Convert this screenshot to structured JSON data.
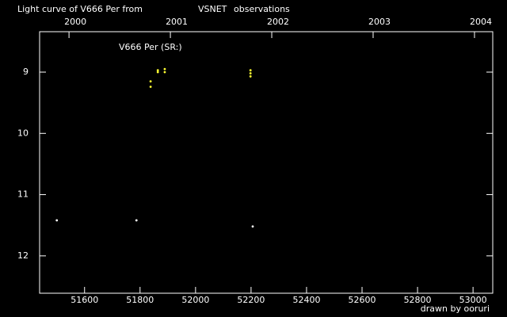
{
  "chart_data": {
    "type": "scatter",
    "title_parts": [
      "Light curve of V666 Per from",
      "VSNET",
      "observations"
    ],
    "title_colors": [
      "#ffffff",
      "#ffff66",
      "#ffffff"
    ],
    "label": "V666 Per (SR:)",
    "footer": "drawn by ooruri",
    "footer_color": "#33cccc",
    "xlim": [
      51438,
      53071
    ],
    "xticks": [
      51600,
      51800,
      52000,
      52200,
      52400,
      52600,
      52800,
      53000
    ],
    "x2lim": [
      1999.71,
      2004.18
    ],
    "x2ticks": [
      2000,
      2001,
      2002,
      2003,
      2004
    ],
    "ylim": [
      8.34,
      12.61
    ],
    "y_inverted": true,
    "yticks": [
      9,
      10,
      11,
      12
    ],
    "series": [
      {
        "color": "#ffff33",
        "x": [
          51838,
          51838,
          51864,
          51864,
          51889,
          51889,
          52198,
          52198,
          52198
        ],
        "values": [
          9.15,
          9.24,
          9.0,
          8.97,
          8.95,
          9.0,
          8.97,
          9.02,
          9.07
        ]
      },
      {
        "color": "#ffffff",
        "x": [
          51500,
          51787,
          52206
        ],
        "values": [
          11.42,
          11.42,
          11.52
        ]
      }
    ]
  }
}
